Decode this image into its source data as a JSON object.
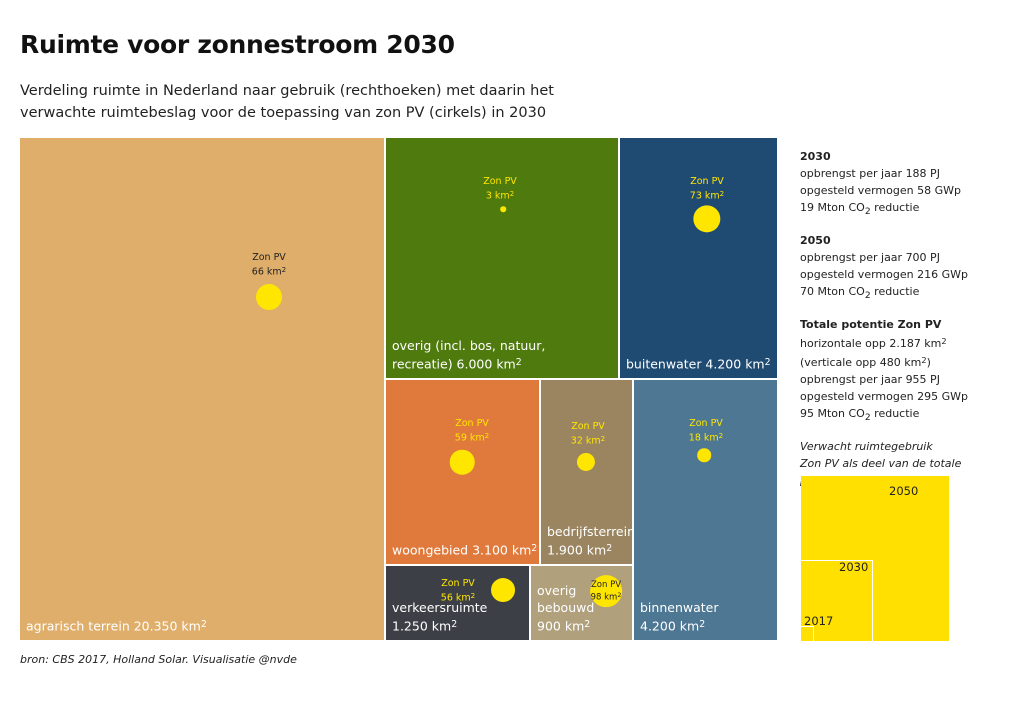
{
  "title": "Ruimte voor zonnestroom 2030",
  "subtitle": "Verdeling ruimte in Nederland naar gebruik (rechthoeken) met daarin het verwachte ruimtebeslag voor de toepassing van zon PV (cirkels) in 2030",
  "pv_label": "Zon PV",
  "chart_data": {
    "type": "treemap",
    "unit": "km2",
    "categories": [
      {
        "key": "agrarisch",
        "label": "agrarisch terrein 20.350 km",
        "area": 20350,
        "pv": 66,
        "pv_text": "66 km",
        "color": "#dfae6a",
        "pv_text_color": "#222222"
      },
      {
        "key": "overig",
        "label_lines": [
          "overig (incl. bos, natuur,",
          "recreatie) 6.000 km"
        ],
        "area": 6000,
        "pv": 3,
        "pv_text": "3 km",
        "color": "#4f7a0d",
        "pv_text_color": "#ffe600"
      },
      {
        "key": "buitenwater",
        "label": "buitenwater 4.200 km",
        "area": 4200,
        "pv": 73,
        "pv_text": "73 km",
        "color": "#1f4b73",
        "pv_text_color": "#ffe600"
      },
      {
        "key": "woongebied",
        "label": "woongebied 3.100 km",
        "area": 3100,
        "pv": 59,
        "pv_text": "59 km",
        "color": "#e07a3c",
        "pv_text_color": "#ffe600"
      },
      {
        "key": "bedrijfsterrein",
        "label_lines": [
          "bedrijfsterrein",
          "1.900 km"
        ],
        "area": 1900,
        "pv": 32,
        "pv_text": "32 km",
        "color": "#9b8560",
        "pv_text_color": "#ffe600"
      },
      {
        "key": "binnenwater",
        "label_lines": [
          "binnenwater",
          "4.200 km"
        ],
        "area": 4200,
        "pv": 18,
        "pv_text": "18 km",
        "color": "#4d7793",
        "pv_text_color": "#ffe600"
      },
      {
        "key": "verkeersruimte",
        "label_lines": [
          "verkeersruimte",
          "1.250 km"
        ],
        "area": 1250,
        "pv": 56,
        "pv_text": "56 km",
        "color": "#3c3f45",
        "pv_text_color": "#ffe600"
      },
      {
        "key": "overig_bebouwd",
        "label_lines": [
          "overig",
          "bebouwd",
          "900 km"
        ],
        "area": 900,
        "pv": 98,
        "pv_text": "98 km",
        "color": "#b0a07c",
        "pv_text_color": "#222222"
      }
    ],
    "pv_circle_color": "#ffe600"
  },
  "sidebar": {
    "y2030": {
      "head": "2030",
      "l1": "opbrengst per jaar 188 PJ",
      "l2": "opgesteld vermogen 58 GWp",
      "l3a": "19 Mton CO",
      "l3b": "2",
      "l3c": " reductie"
    },
    "y2050": {
      "head": "2050",
      "l1": "opbrengst per jaar 700 PJ",
      "l2": "opgesteld vermogen 216 GWp",
      "l3a": "70 Mton CO",
      "l3b": "2",
      "l3c": " reductie"
    },
    "totaal": {
      "head": "Totale potentie Zon PV",
      "l1": "horizontale opp 2.187 km",
      "l2a": "(verticale opp 480 km",
      "l2b": ")",
      "l3": "opbrengst per jaar 955 PJ",
      "l4": "opgesteld vermogen 295 GWp",
      "l5a": "95 Mton CO",
      "l5b": "2",
      "l5c": " reductie"
    },
    "italic_l1": "Verwacht ruimtegebruik",
    "italic_l2": "Zon PV als deel van de totale",
    "italic_l3": "potentie",
    "squares": [
      {
        "label": "2050"
      },
      {
        "label": "2030"
      },
      {
        "label": "2017"
      }
    ]
  },
  "source": "bron: CBS 2017, Holland Solar. Visualisatie @nvde"
}
